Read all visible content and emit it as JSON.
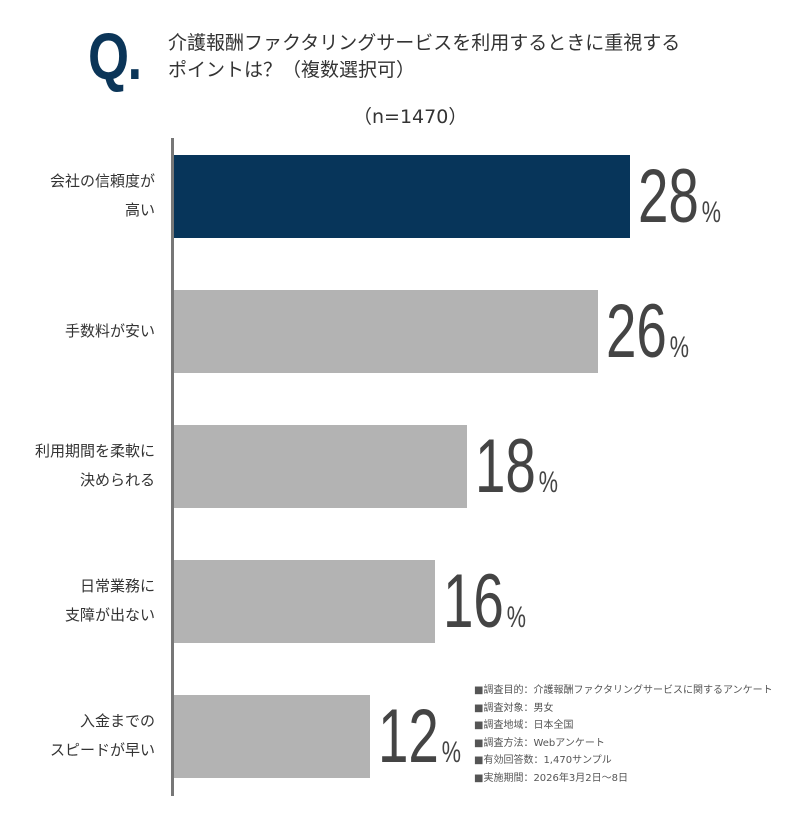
{
  "header": {
    "q_mark": "Q.",
    "title_line1": "介護報酬ファクタリングサービスを利用するときに重視する",
    "title_line2": "ポイントは？（複数選択可）"
  },
  "chart_data": {
    "type": "bar",
    "orientation": "horizontal",
    "subtitle": "（n=1470）",
    "categories": [
      "会社の信頼度が\n高い",
      "手数料が安い",
      "利用期間を柔軟に\n決められる",
      "日常業務に\n支障が出ない",
      "入金までの\nスピードが早い"
    ],
    "values": [
      28,
      26,
      18,
      16,
      12
    ],
    "unit": "%",
    "colors": [
      "#07355a",
      "#b3b3b3",
      "#b3b3b3",
      "#b3b3b3",
      "#b3b3b3"
    ],
    "grid": false
  },
  "notes": [
    "■調査目的：介護報酬ファクタリングサービスに関するアンケート",
    "■調査対象：男女",
    "■調査地域：日本全国",
    "■調査方法：Webアンケート",
    "■有効回答数：1,470サンプル",
    "■実施期間：2026年3月2日～8日"
  ]
}
